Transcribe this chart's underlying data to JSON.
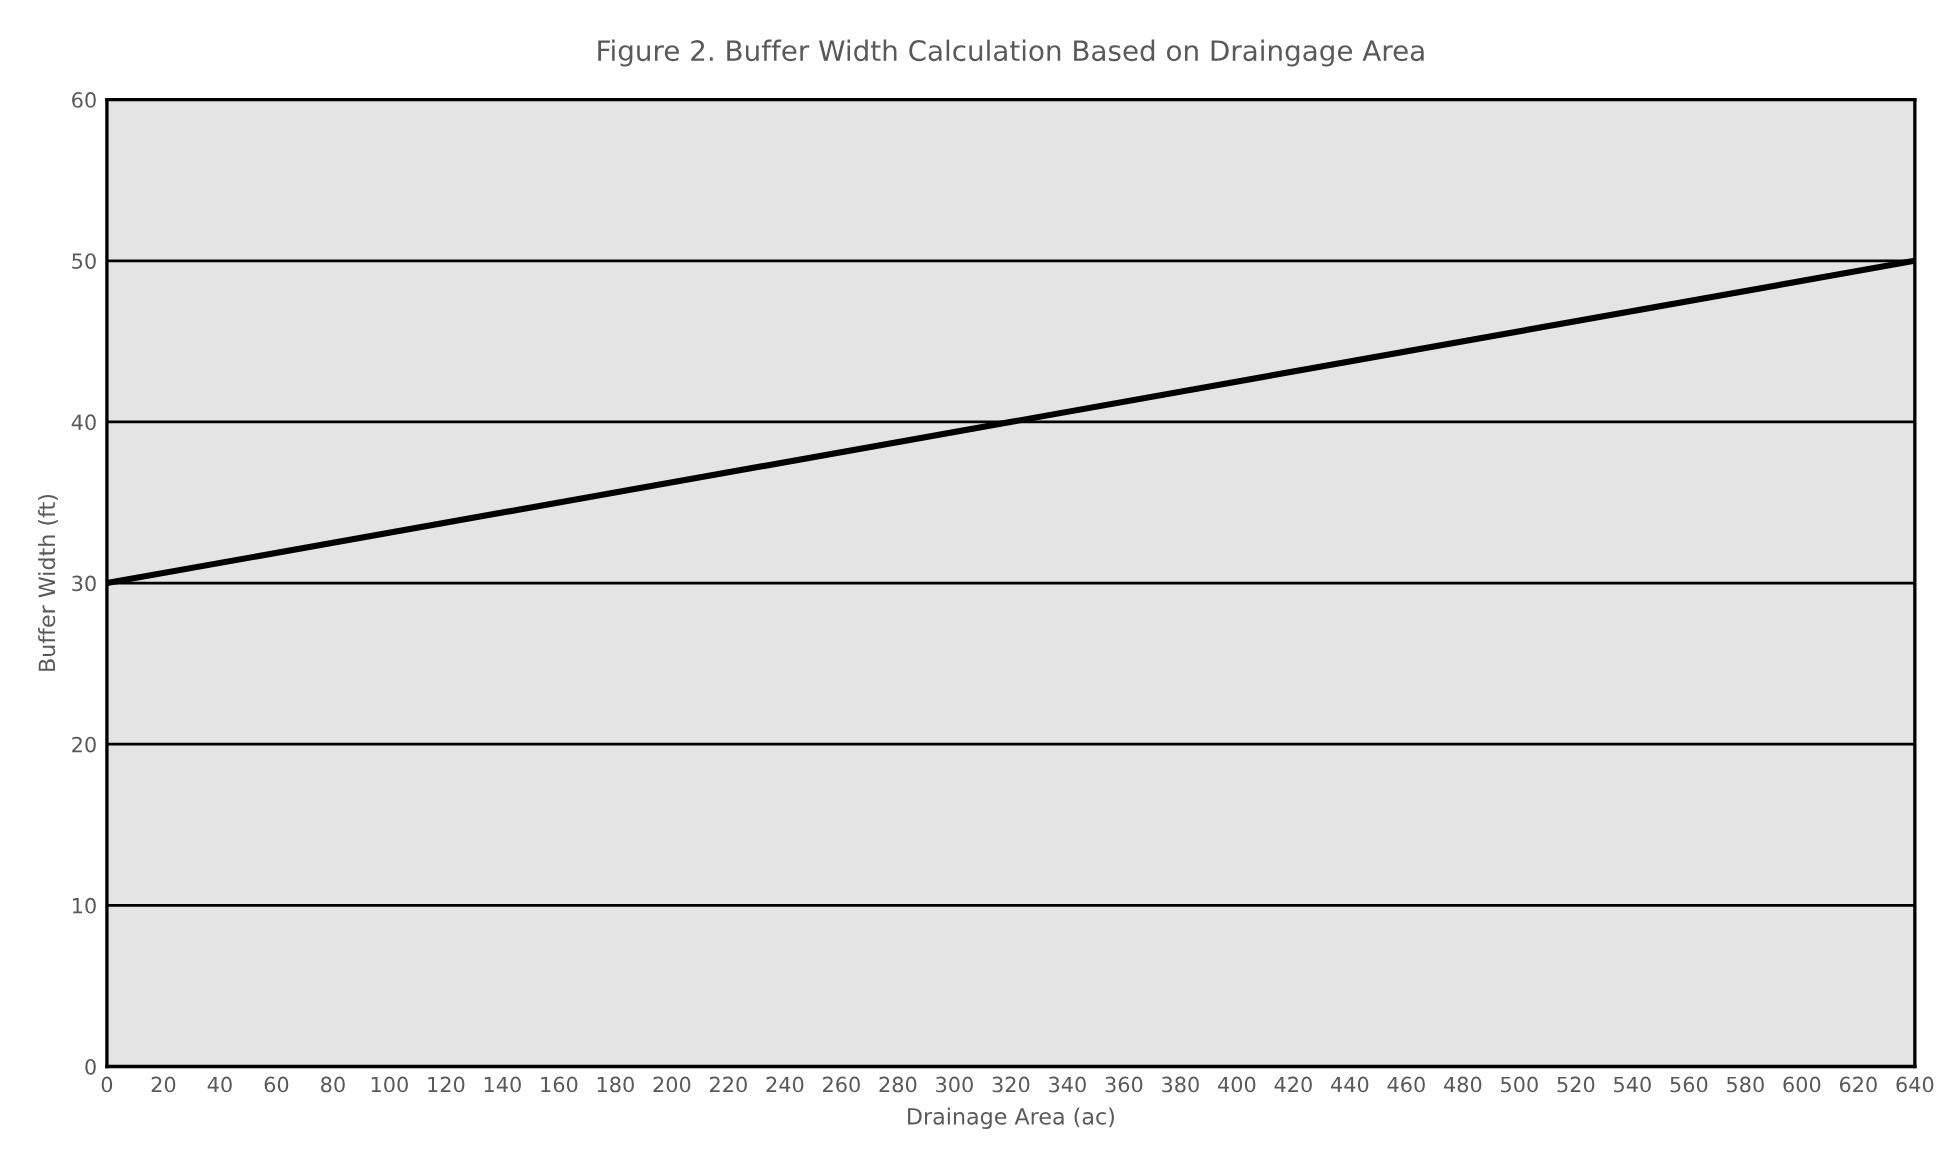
{
  "chart_data": {
    "type": "line",
    "title": "Figure 2. Buffer Width Calculation Based on Draingage Area",
    "xlabel": "Drainage Area (ac)",
    "ylabel": "Buffer Width (ft)",
    "x": [
      0,
      640
    ],
    "series": [
      {
        "color": "#000000",
        "values": [
          30,
          50
        ]
      }
    ],
    "xlim": [
      0,
      640
    ],
    "xticks": [
      0,
      20,
      40,
      60,
      80,
      100,
      120,
      140,
      160,
      180,
      200,
      220,
      240,
      260,
      280,
      300,
      320,
      340,
      360,
      380,
      400,
      420,
      440,
      460,
      480,
      500,
      520,
      540,
      560,
      580,
      600,
      620,
      640
    ],
    "ylim": [
      0,
      60
    ],
    "yticks": [
      0,
      10,
      20,
      30,
      40,
      50,
      60
    ],
    "grid": "y"
  }
}
